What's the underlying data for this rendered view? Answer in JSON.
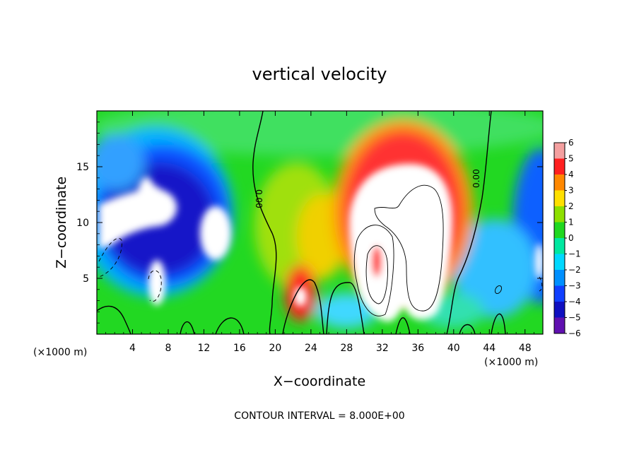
{
  "chart_data": {
    "type": "heatmap",
    "title": "vertical velocity",
    "xlabel": "X−coordinate",
    "ylabel": "Z−coordinate",
    "x_unit_left": "(×1000 m)",
    "x_unit_right": "(×1000 m)",
    "xlim": [
      0,
      50
    ],
    "ylim": [
      0,
      20
    ],
    "xticks": [
      4,
      8,
      12,
      16,
      20,
      24,
      28,
      32,
      36,
      40,
      44,
      48
    ],
    "yticks": [
      5,
      10,
      15
    ],
    "contour_labels": [
      "0.00",
      "0.00"
    ],
    "footer": "CONTOUR INTERVAL = 8.000E+00",
    "colorbar": {
      "min": -6,
      "max": 6,
      "ticks": [
        "6",
        "5",
        "4",
        "3",
        "2",
        "1",
        "0",
        "−1",
        "−2",
        "−3",
        "−4",
        "−5",
        "−6"
      ],
      "stops": [
        "#f4a0a0",
        "#ff2020",
        "#ff8800",
        "#ffe000",
        "#8ee000",
        "#20d820",
        "#00e8a0",
        "#00d8ff",
        "#0090ff",
        "#1040ff",
        "#1010c0",
        "#6010b0"
      ]
    },
    "features": [
      {
        "name": "downdraft-left",
        "x": 7,
        "z": 11,
        "w": -6
      },
      {
        "name": "downdraft-mid",
        "x": 13,
        "z": 9,
        "w": -6
      },
      {
        "name": "downdraft-low",
        "x": 6.5,
        "z": 5,
        "w": -6
      },
      {
        "name": "updraft-core",
        "x": 34,
        "z": 9,
        "w": 6
      },
      {
        "name": "updraft-low",
        "x": 22.5,
        "z": 3.5,
        "w": 5
      },
      {
        "name": "downdraft-right-edge",
        "x": 49,
        "z": 10,
        "w": -5
      }
    ]
  }
}
